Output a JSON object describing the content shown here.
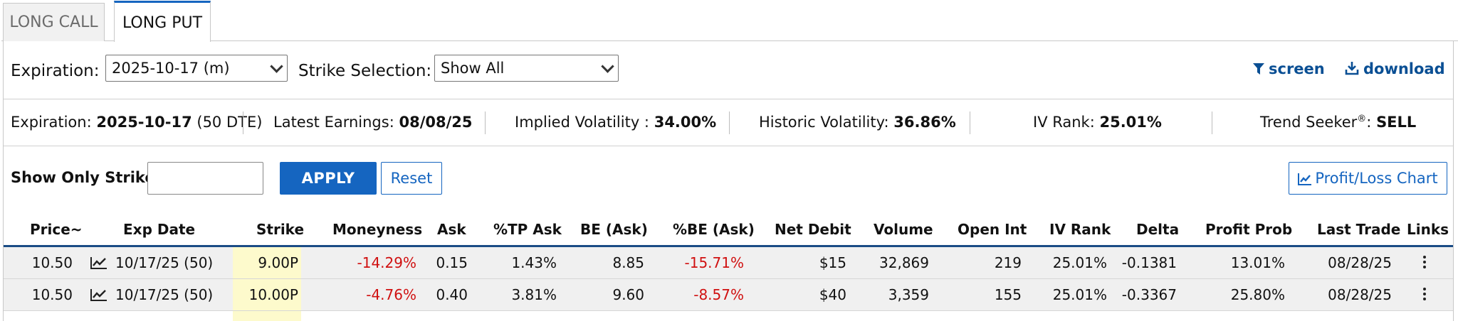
{
  "tabs": [
    {
      "label": "LONG CALL",
      "active": false
    },
    {
      "label": "LONG PUT",
      "active": true
    }
  ],
  "controls": {
    "expiration_label": "Expiration:",
    "expiration_value": "2025-10-17 (m)",
    "strike_selection_label": "Strike Selection:",
    "strike_selection_value": "Show All",
    "screen_label": "screen",
    "download_label": "download"
  },
  "stats": {
    "expiration_prefix": "Expiration:",
    "expiration_date": "2025-10-17",
    "expiration_dte": "(50 DTE)",
    "earnings_label": "Latest Earnings:",
    "earnings_value": "08/08/25",
    "iv_label": "Implied Volatility :",
    "iv_value": "34.00%",
    "hv_label": "Historic Volatility:",
    "hv_value": "36.86%",
    "ivrank_label": "IV Rank:",
    "ivrank_value": "25.01%",
    "trend_label": "Trend Seeker",
    "trend_reg": "®",
    "trend_colon": ":",
    "trend_value": "SELL"
  },
  "filter": {
    "label": "Show Only Strike:",
    "input_value": "",
    "apply_label": "APPLY",
    "reset_label": "Reset",
    "chart_label": "Profit/Loss Chart"
  },
  "table": {
    "columns": [
      "Price~",
      "Exp Date",
      "Strike",
      "Moneyness",
      "Ask",
      "%TP Ask",
      "BE (Ask)",
      "%BE (Ask)",
      "Net Debit",
      "Volume",
      "Open Int",
      "IV Rank",
      "Delta",
      "Profit Prob",
      "Last Trade",
      "Links"
    ],
    "rows": [
      {
        "price": "10.50",
        "exp_date": "10/17/25 (50)",
        "strike": "9.00P",
        "moneyness": "-14.29%",
        "ask": "0.15",
        "tp_ask": "1.43%",
        "be_ask": "8.85",
        "pbe_ask": "-15.71%",
        "net_debit": "$15",
        "volume": "32,869",
        "open_int": "219",
        "iv_rank": "25.01%",
        "delta": "-0.1381",
        "profit_prob": "13.01%",
        "last_trade": "08/28/25"
      },
      {
        "price": "10.50",
        "exp_date": "10/17/25 (50)",
        "strike": "10.00P",
        "moneyness": "-4.76%",
        "ask": "0.40",
        "tp_ask": "3.81%",
        "be_ask": "9.60",
        "pbe_ask": "-8.57%",
        "net_debit": "$40",
        "volume": "3,359",
        "open_int": "155",
        "iv_rank": "25.01%",
        "delta": "-0.3367",
        "profit_prob": "25.80%",
        "last_trade": "08/28/25"
      }
    ]
  },
  "colors": {
    "accent": "#1565c0",
    "link": "#0a4f94",
    "negative": "#d01010",
    "strike_highlight": "#fdfacc",
    "row_bg": "#f0f0f0"
  }
}
